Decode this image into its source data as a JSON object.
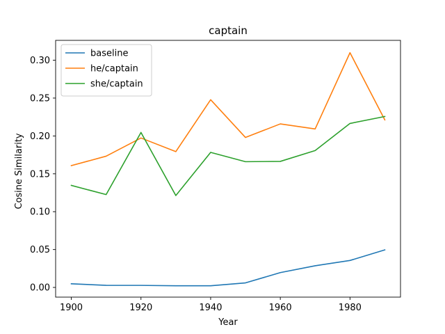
{
  "chart_data": {
    "type": "line",
    "title": "captain",
    "xlabel": "Year",
    "ylabel": "Cosine Similarity",
    "x": [
      1900,
      1910,
      1920,
      1930,
      1940,
      1950,
      1960,
      1970,
      1980,
      1990
    ],
    "xlim": [
      1895.5,
      1994.5
    ],
    "ylim": [
      -0.0128,
      0.3262
    ],
    "xticks": [
      1900,
      1920,
      1940,
      1960,
      1980
    ],
    "yticks": [
      0.0,
      0.05,
      0.1,
      0.15,
      0.2,
      0.25,
      0.3
    ],
    "xtick_labels": [
      "1900",
      "1920",
      "1940",
      "1960",
      "1980"
    ],
    "ytick_labels": [
      "0.00",
      "0.05",
      "0.10",
      "0.15",
      "0.20",
      "0.25",
      "0.30"
    ],
    "grid": false,
    "legend_position": "upper-left",
    "series": [
      {
        "name": "baseline",
        "color": "#1f77b4",
        "values": [
          0.0048,
          0.0028,
          0.0027,
          0.0022,
          0.0022,
          0.006,
          0.0196,
          0.0286,
          0.0356,
          0.0496
        ]
      },
      {
        "name": "he/captain",
        "color": "#ff7f0e",
        "values": [
          0.1608,
          0.1733,
          0.1973,
          0.1793,
          0.2478,
          0.198,
          0.2159,
          0.2092,
          0.3099,
          0.2212
        ]
      },
      {
        "name": "she/captain",
        "color": "#2ca02c",
        "values": [
          0.1347,
          0.1226,
          0.2046,
          0.1213,
          0.1783,
          0.166,
          0.1664,
          0.1807,
          0.2165,
          0.2257
        ]
      }
    ]
  }
}
